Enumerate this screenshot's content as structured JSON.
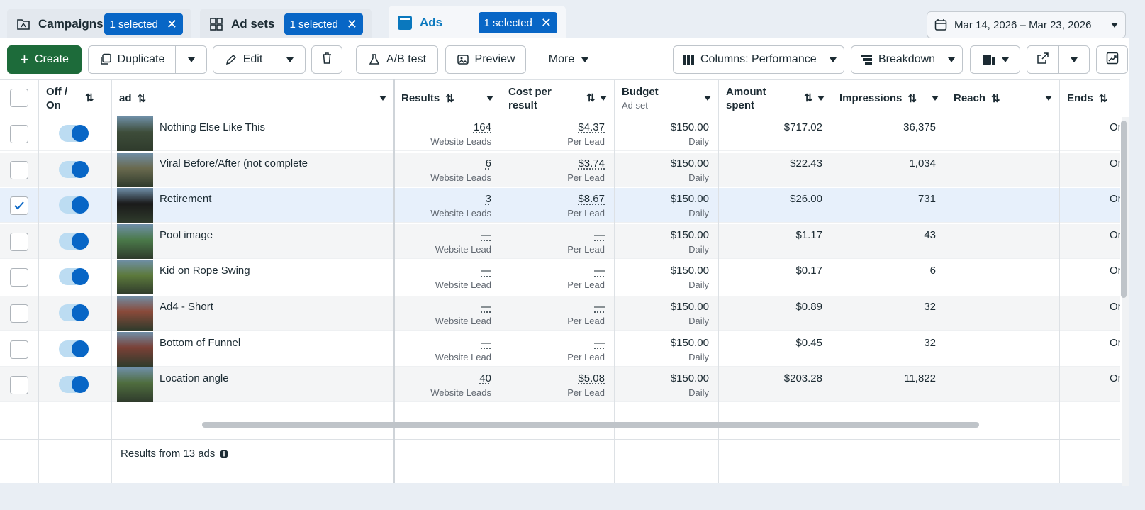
{
  "tabs": [
    {
      "label": "Campaigns",
      "icon": "folder-icon",
      "selected": "1 selected"
    },
    {
      "label": "Ad sets",
      "icon": "grid-icon",
      "selected": "1 selected"
    },
    {
      "label": "Ads",
      "icon": "ad-icon",
      "selected": "1 selected"
    }
  ],
  "date_range": "Mar 14, 2026 – Mar 23, 2026",
  "toolbar": {
    "create": "Create",
    "duplicate": "Duplicate",
    "edit": "Edit",
    "ab_test": "A/B test",
    "preview": "Preview",
    "more": "More",
    "columns": "Columns: Performance",
    "breakdown": "Breakdown"
  },
  "columns": {
    "off_on": "Off / On",
    "ad": "ad",
    "results": "Results",
    "cost_per_result": "Cost per result",
    "budget": "Budget",
    "budget_sub": "Ad set",
    "amount_spent": "Amount spent",
    "impressions": "Impressions",
    "reach": "Reach",
    "ends": "Ends"
  },
  "rows": [
    {
      "name": "Nothing Else Like This",
      "results": "164",
      "results_label": "Website Leads",
      "cpr": "$4.37",
      "cpr_label": "Per Lead",
      "budget": "$150.00",
      "budget_label": "Daily",
      "spent": "$717.02",
      "impressions": "36,375",
      "reach": "",
      "ends": "Ongoi",
      "checked": false,
      "on": true,
      "thumb_color": "#3e4d3a"
    },
    {
      "name": "Viral Before/After (not complete",
      "results": "6",
      "results_label": "Website Leads",
      "cpr": "$3.74",
      "cpr_label": "Per Lead",
      "budget": "$150.00",
      "budget_label": "Daily",
      "spent": "$22.43",
      "impressions": "1,034",
      "reach": "",
      "ends": "Ongoi",
      "checked": false,
      "on": true,
      "thumb_color": "#6a6a4f"
    },
    {
      "name": "Retirement",
      "results": "3",
      "results_label": "Website Leads",
      "cpr": "$8.67",
      "cpr_label": "Per Lead",
      "budget": "$150.00",
      "budget_label": "Daily",
      "spent": "$26.00",
      "impressions": "731",
      "reach": "",
      "ends": "Ongoi",
      "checked": true,
      "on": true,
      "thumb_color": "#1a1a1a"
    },
    {
      "name": "Pool image",
      "results": "—",
      "results_label": "Website Lead",
      "cpr": "—",
      "cpr_label": "Per Lead",
      "budget": "$150.00",
      "budget_label": "Daily",
      "spent": "$1.17",
      "impressions": "43",
      "reach": "",
      "ends": "Ongoi",
      "checked": false,
      "on": true,
      "thumb_color": "#4b7a4a"
    },
    {
      "name": "Kid on Rope Swing",
      "results": "—",
      "results_label": "Website Lead",
      "cpr": "—",
      "cpr_label": "Per Lead",
      "budget": "$150.00",
      "budget_label": "Daily",
      "spent": "$0.17",
      "impressions": "6",
      "reach": "",
      "ends": "Ongoi",
      "checked": false,
      "on": true,
      "thumb_color": "#5d7a3c"
    },
    {
      "name": "Ad4 - Short",
      "results": "—",
      "results_label": "Website Lead",
      "cpr": "—",
      "cpr_label": "Per Lead",
      "budget": "$150.00",
      "budget_label": "Daily",
      "spent": "$0.89",
      "impressions": "32",
      "reach": "",
      "ends": "Ongoi",
      "checked": false,
      "on": true,
      "thumb_color": "#8a4a3a"
    },
    {
      "name": "Bottom of Funnel",
      "results": "—",
      "results_label": "Website Lead",
      "cpr": "—",
      "cpr_label": "Per Lead",
      "budget": "$150.00",
      "budget_label": "Daily",
      "spent": "$0.45",
      "impressions": "32",
      "reach": "",
      "ends": "Ongoi",
      "checked": false,
      "on": true,
      "thumb_color": "#7a4036"
    },
    {
      "name": "Location angle",
      "results": "40",
      "results_label": "Website Leads",
      "cpr": "$5.08",
      "cpr_label": "Per Lead",
      "budget": "$150.00",
      "budget_label": "Daily",
      "spent": "$203.28",
      "impressions": "11,822",
      "reach": "",
      "ends": "Ongoi",
      "checked": false,
      "on": true,
      "thumb_color": "#4f6d3e"
    }
  ],
  "footer": {
    "results_text": "Results from 13 ads"
  },
  "colors": {
    "accent": "#0866c6",
    "create_green": "#1d6b3a",
    "selected_row": "#e7f0fb"
  }
}
